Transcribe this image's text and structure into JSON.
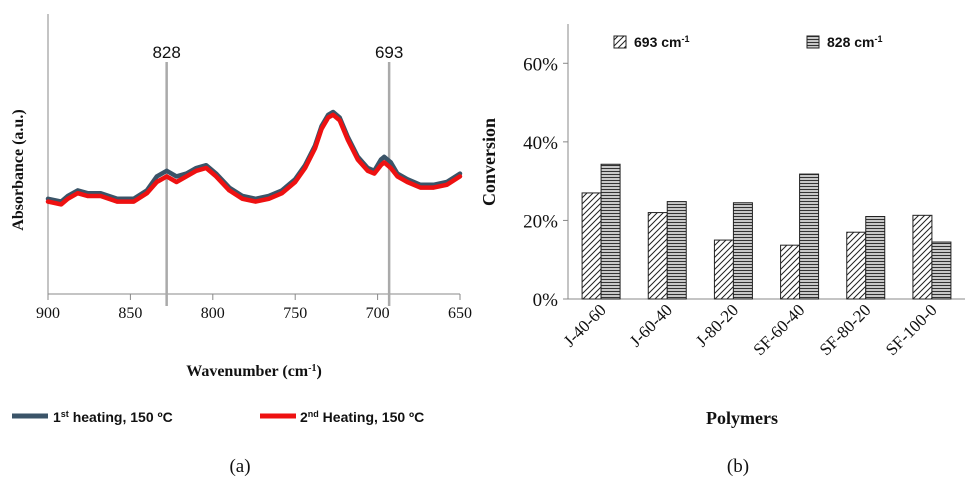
{
  "panel_a_label": "(a)",
  "panel_b_label": "(b)",
  "chart_data": [
    {
      "type": "line",
      "xlabel": "Wavenumber (cm",
      "xlabel_sup": "-1",
      "xlabel_end": ")",
      "ylabel": "Absorbance (a.u.)",
      "x_ticks": [
        900,
        850,
        800,
        750,
        700,
        650
      ],
      "x_tick_labels": [
        "900",
        "850",
        "800",
        "750",
        "700",
        "650"
      ],
      "xlim": [
        900,
        650
      ],
      "x_reversed": true,
      "markers": [
        {
          "x": 828,
          "label": "828"
        },
        {
          "x": 693,
          "label": "693"
        }
      ],
      "legend": [
        {
          "text": "1",
          "sup": "st",
          "rest": " heating, 150 ºC",
          "color": "#3a5468"
        },
        {
          "text": "2",
          "sup": "nd",
          "rest": " Heating, 150 ºC",
          "color": "#ee1111"
        }
      ],
      "series": [
        {
          "name": "1st heating, 150 ºC",
          "color": "#3a5468",
          "points": [
            [
              900,
              0.34
            ],
            [
              892,
              0.33
            ],
            [
              888,
              0.35
            ],
            [
              882,
              0.37
            ],
            [
              876,
              0.36
            ],
            [
              868,
              0.36
            ],
            [
              858,
              0.34
            ],
            [
              848,
              0.34
            ],
            [
              840,
              0.37
            ],
            [
              834,
              0.42
            ],
            [
              828,
              0.44
            ],
            [
              822,
              0.42
            ],
            [
              816,
              0.43
            ],
            [
              810,
              0.45
            ],
            [
              804,
              0.46
            ],
            [
              798,
              0.43
            ],
            [
              790,
              0.38
            ],
            [
              782,
              0.35
            ],
            [
              774,
              0.34
            ],
            [
              766,
              0.35
            ],
            [
              758,
              0.37
            ],
            [
              750,
              0.41
            ],
            [
              744,
              0.46
            ],
            [
              738,
              0.53
            ],
            [
              734,
              0.6
            ],
            [
              730,
              0.64
            ],
            [
              727,
              0.65
            ],
            [
              723,
              0.63
            ],
            [
              718,
              0.56
            ],
            [
              712,
              0.49
            ],
            [
              706,
              0.45
            ],
            [
              702,
              0.44
            ],
            [
              698,
              0.48
            ],
            [
              696,
              0.49
            ],
            [
              692,
              0.47
            ],
            [
              688,
              0.43
            ],
            [
              682,
              0.41
            ],
            [
              674,
              0.39
            ],
            [
              666,
              0.39
            ],
            [
              658,
              0.4
            ],
            [
              650,
              0.43
            ]
          ]
        },
        {
          "name": "2nd Heating, 150 ºC",
          "color": "#ee1111",
          "points": [
            [
              900,
              0.33
            ],
            [
              892,
              0.32
            ],
            [
              888,
              0.34
            ],
            [
              882,
              0.36
            ],
            [
              876,
              0.35
            ],
            [
              868,
              0.35
            ],
            [
              858,
              0.33
            ],
            [
              848,
              0.33
            ],
            [
              840,
              0.36
            ],
            [
              834,
              0.4
            ],
            [
              828,
              0.42
            ],
            [
              822,
              0.4
            ],
            [
              816,
              0.42
            ],
            [
              810,
              0.44
            ],
            [
              804,
              0.45
            ],
            [
              798,
              0.42
            ],
            [
              790,
              0.37
            ],
            [
              782,
              0.34
            ],
            [
              774,
              0.33
            ],
            [
              766,
              0.34
            ],
            [
              758,
              0.36
            ],
            [
              750,
              0.4
            ],
            [
              744,
              0.45
            ],
            [
              738,
              0.52
            ],
            [
              734,
              0.59
            ],
            [
              730,
              0.63
            ],
            [
              727,
              0.64
            ],
            [
              723,
              0.62
            ],
            [
              718,
              0.55
            ],
            [
              712,
              0.48
            ],
            [
              706,
              0.44
            ],
            [
              702,
              0.43
            ],
            [
              698,
              0.46
            ],
            [
              696,
              0.47
            ],
            [
              692,
              0.45
            ],
            [
              688,
              0.42
            ],
            [
              682,
              0.4
            ],
            [
              674,
              0.38
            ],
            [
              666,
              0.38
            ],
            [
              658,
              0.39
            ],
            [
              650,
              0.42
            ]
          ]
        }
      ]
    },
    {
      "type": "bar",
      "xlabel": "Polymers",
      "ylabel": "Conversion",
      "categories": [
        "J-40-60",
        "J-60-40",
        "J-80-20",
        "SF-60-40",
        "SF-80-20",
        "SF-100-0"
      ],
      "ylim": [
        0,
        0.7
      ],
      "y_ticks": [
        0,
        0.2,
        0.4,
        0.6
      ],
      "y_tick_labels": [
        "0%",
        "20%",
        "40%",
        "60%"
      ],
      "legend": [
        {
          "text": "693 cm",
          "sup": "-1",
          "pattern": "diagonal"
        },
        {
          "text": "828 cm",
          "sup": "-1",
          "pattern": "horizontal"
        }
      ],
      "series": [
        {
          "name": "693 cm-1",
          "pattern": "diagonal",
          "values": [
            0.27,
            0.22,
            0.15,
            0.137,
            0.17,
            0.213
          ]
        },
        {
          "name": "828 cm-1",
          "pattern": "horizontal",
          "values": [
            0.343,
            0.248,
            0.245,
            0.318,
            0.21,
            0.145
          ]
        }
      ]
    }
  ]
}
